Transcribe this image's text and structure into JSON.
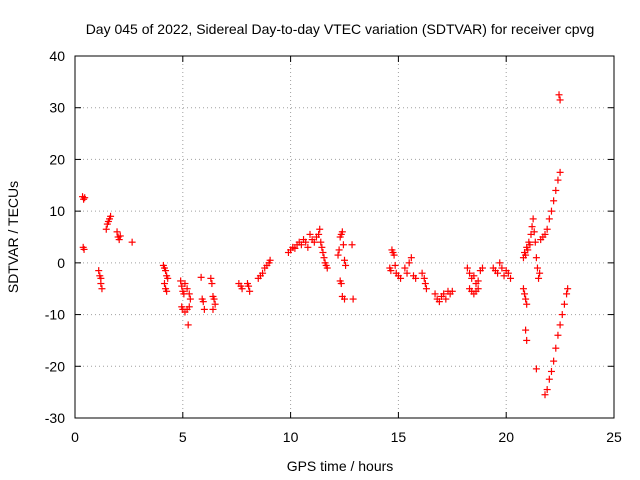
{
  "chart_data": {
    "type": "scatter",
    "title": "Day 045 of 2022, Sidereal Day-to-day VTEC variation (SDTVAR) for receiver cpvg",
    "xlabel": "GPS time / hours",
    "ylabel": "SDTVAR / TECUs",
    "xlim": [
      0,
      25
    ],
    "ylim": [
      -30,
      40
    ],
    "xticks": [
      0,
      5,
      10,
      15,
      20,
      25
    ],
    "yticks": [
      -30,
      -20,
      -10,
      0,
      10,
      20,
      30,
      40
    ],
    "xtick_labels": [
      "0",
      "5",
      "10",
      "15",
      "20",
      "25"
    ],
    "ytick_labels": [
      "-30",
      "-20",
      "-10",
      "0",
      "10",
      "20",
      "30",
      "40"
    ],
    "grid": true,
    "marker": "+",
    "color": "#ff0000",
    "series": [
      {
        "name": "SDTVAR",
        "points": [
          [
            0.35,
            12.8
          ],
          [
            0.4,
            12.3
          ],
          [
            0.45,
            12.6
          ],
          [
            0.38,
            3.0
          ],
          [
            0.42,
            2.6
          ],
          [
            1.1,
            -1.5
          ],
          [
            1.15,
            -2.5
          ],
          [
            1.2,
            -3.0
          ],
          [
            1.2,
            -4.0
          ],
          [
            1.25,
            -5.0
          ],
          [
            1.45,
            6.5
          ],
          [
            1.5,
            7.5
          ],
          [
            1.55,
            8.0
          ],
          [
            1.6,
            8.5
          ],
          [
            1.65,
            9.0
          ],
          [
            1.95,
            6.0
          ],
          [
            2.0,
            5.0
          ],
          [
            2.05,
            4.5
          ],
          [
            2.1,
            5.2
          ],
          [
            2.65,
            4.0
          ],
          [
            4.1,
            -0.5
          ],
          [
            4.15,
            -1.0
          ],
          [
            4.2,
            -1.5
          ],
          [
            4.25,
            -2.5
          ],
          [
            4.3,
            -3.0
          ],
          [
            4.15,
            -4.0
          ],
          [
            4.2,
            -5.0
          ],
          [
            4.25,
            -5.5
          ],
          [
            4.9,
            -3.5
          ],
          [
            4.95,
            -4.5
          ],
          [
            5.0,
            -5.5
          ],
          [
            5.05,
            -6.0
          ],
          [
            5.1,
            -4.0
          ],
          [
            5.2,
            -5.0
          ],
          [
            5.3,
            -6.0
          ],
          [
            5.35,
            -7.0
          ],
          [
            4.95,
            -8.5
          ],
          [
            5.0,
            -9.0
          ],
          [
            5.1,
            -9.5
          ],
          [
            5.2,
            -9.0
          ],
          [
            5.3,
            -8.5
          ],
          [
            5.25,
            -12.0
          ],
          [
            5.85,
            -2.8
          ],
          [
            5.9,
            -7.0
          ],
          [
            5.95,
            -7.5
          ],
          [
            6.0,
            -9.0
          ],
          [
            6.3,
            -3.0
          ],
          [
            6.35,
            -4.0
          ],
          [
            6.4,
            -6.5
          ],
          [
            6.45,
            -7.0
          ],
          [
            6.5,
            -8.0
          ],
          [
            6.4,
            -9.0
          ],
          [
            7.6,
            -4.0
          ],
          [
            7.7,
            -4.5
          ],
          [
            7.75,
            -5.0
          ],
          [
            8.0,
            -4.0
          ],
          [
            8.05,
            -4.5
          ],
          [
            8.1,
            -5.5
          ],
          [
            8.5,
            -3.0
          ],
          [
            8.6,
            -2.5
          ],
          [
            8.7,
            -2.0
          ],
          [
            8.8,
            -1.0
          ],
          [
            8.9,
            -0.5
          ],
          [
            9.0,
            0.0
          ],
          [
            9.05,
            0.5
          ],
          [
            9.9,
            2.0
          ],
          [
            10.0,
            2.5
          ],
          [
            10.1,
            3.0
          ],
          [
            10.2,
            2.8
          ],
          [
            10.3,
            3.5
          ],
          [
            10.4,
            4.0
          ],
          [
            10.5,
            3.5
          ],
          [
            10.6,
            4.5
          ],
          [
            10.7,
            4.0
          ],
          [
            10.8,
            3.0
          ],
          [
            10.9,
            5.5
          ],
          [
            11.0,
            4.5
          ],
          [
            11.1,
            4.0
          ],
          [
            11.2,
            5.0
          ],
          [
            11.3,
            5.5
          ],
          [
            11.35,
            6.5
          ],
          [
            11.4,
            4.0
          ],
          [
            11.45,
            3.0
          ],
          [
            11.5,
            2.0
          ],
          [
            11.55,
            1.0
          ],
          [
            11.6,
            0.0
          ],
          [
            11.65,
            -0.5
          ],
          [
            11.7,
            -1.0
          ],
          [
            12.2,
            1.5
          ],
          [
            12.25,
            2.5
          ],
          [
            12.3,
            5.0
          ],
          [
            12.35,
            5.5
          ],
          [
            12.4,
            6.0
          ],
          [
            12.45,
            3.5
          ],
          [
            12.5,
            0.5
          ],
          [
            12.55,
            -0.5
          ],
          [
            12.3,
            -3.5
          ],
          [
            12.35,
            -4.0
          ],
          [
            12.4,
            -6.5
          ],
          [
            12.5,
            -7.0
          ],
          [
            12.9,
            -7.0
          ],
          [
            12.85,
            3.5
          ],
          [
            14.6,
            -1.0
          ],
          [
            14.65,
            -1.5
          ],
          [
            14.7,
            2.5
          ],
          [
            14.75,
            2.0
          ],
          [
            14.8,
            1.5
          ],
          [
            14.85,
            -0.5
          ],
          [
            14.9,
            -2.0
          ],
          [
            15.0,
            -2.5
          ],
          [
            15.1,
            -3.0
          ],
          [
            15.3,
            -1.0
          ],
          [
            15.4,
            -2.0
          ],
          [
            15.5,
            0.0
          ],
          [
            15.6,
            1.0
          ],
          [
            15.7,
            -2.5
          ],
          [
            15.8,
            -3.0
          ],
          [
            16.1,
            -2.0
          ],
          [
            16.2,
            -3.0
          ],
          [
            16.25,
            -4.0
          ],
          [
            16.3,
            -5.0
          ],
          [
            16.7,
            -6.0
          ],
          [
            16.8,
            -7.0
          ],
          [
            16.9,
            -7.5
          ],
          [
            17.0,
            -6.5
          ],
          [
            17.1,
            -6.0
          ],
          [
            17.2,
            -7.0
          ],
          [
            17.3,
            -5.5
          ],
          [
            17.4,
            -6.0
          ],
          [
            17.5,
            -5.5
          ],
          [
            18.2,
            -1.0
          ],
          [
            18.3,
            -2.0
          ],
          [
            18.4,
            -3.0
          ],
          [
            18.5,
            -2.5
          ],
          [
            18.6,
            -4.0
          ],
          [
            18.7,
            -3.5
          ],
          [
            18.8,
            -1.5
          ],
          [
            18.9,
            -1.0
          ],
          [
            18.3,
            -5.0
          ],
          [
            18.4,
            -5.5
          ],
          [
            18.5,
            -6.0
          ],
          [
            18.6,
            -5.5
          ],
          [
            18.7,
            -5.0
          ],
          [
            19.4,
            -1.0
          ],
          [
            19.5,
            -1.5
          ],
          [
            19.6,
            -2.0
          ],
          [
            19.7,
            0.0
          ],
          [
            19.8,
            -1.0
          ],
          [
            19.9,
            -2.5
          ],
          [
            20.0,
            -1.5
          ],
          [
            20.1,
            -2.0
          ],
          [
            20.2,
            -3.0
          ],
          [
            20.8,
            1.0
          ],
          [
            20.85,
            2.0
          ],
          [
            20.9,
            1.5
          ],
          [
            20.95,
            3.0
          ],
          [
            21.0,
            2.5
          ],
          [
            21.05,
            4.0
          ],
          [
            21.1,
            3.5
          ],
          [
            21.15,
            5.5
          ],
          [
            21.2,
            7.0
          ],
          [
            21.25,
            8.5
          ],
          [
            21.3,
            6.0
          ],
          [
            21.35,
            4.0
          ],
          [
            21.4,
            1.0
          ],
          [
            21.45,
            -1.0
          ],
          [
            21.5,
            -3.0
          ],
          [
            21.55,
            -2.0
          ],
          [
            20.8,
            -5.0
          ],
          [
            20.85,
            -6.0
          ],
          [
            20.9,
            -7.0
          ],
          [
            20.95,
            -8.0
          ],
          [
            20.9,
            -13.0
          ],
          [
            20.95,
            -15.0
          ],
          [
            21.4,
            -20.5
          ],
          [
            21.6,
            4.5
          ],
          [
            21.7,
            5.0
          ],
          [
            21.8,
            5.5
          ],
          [
            21.9,
            6.5
          ],
          [
            22.0,
            8.5
          ],
          [
            22.1,
            10.0
          ],
          [
            22.2,
            12.0
          ],
          [
            22.3,
            14.0
          ],
          [
            22.4,
            16.0
          ],
          [
            22.5,
            17.5
          ],
          [
            22.45,
            32.5
          ],
          [
            22.5,
            31.5
          ],
          [
            21.8,
            -25.5
          ],
          [
            21.9,
            -24.5
          ],
          [
            22.0,
            -22.5
          ],
          [
            22.1,
            -21.0
          ],
          [
            22.2,
            -19.0
          ],
          [
            22.3,
            -16.5
          ],
          [
            22.4,
            -14.0
          ],
          [
            22.5,
            -12.0
          ],
          [
            22.6,
            -10.0
          ],
          [
            22.7,
            -8.0
          ],
          [
            22.8,
            -6.0
          ],
          [
            22.85,
            -5.0
          ]
        ]
      }
    ]
  }
}
